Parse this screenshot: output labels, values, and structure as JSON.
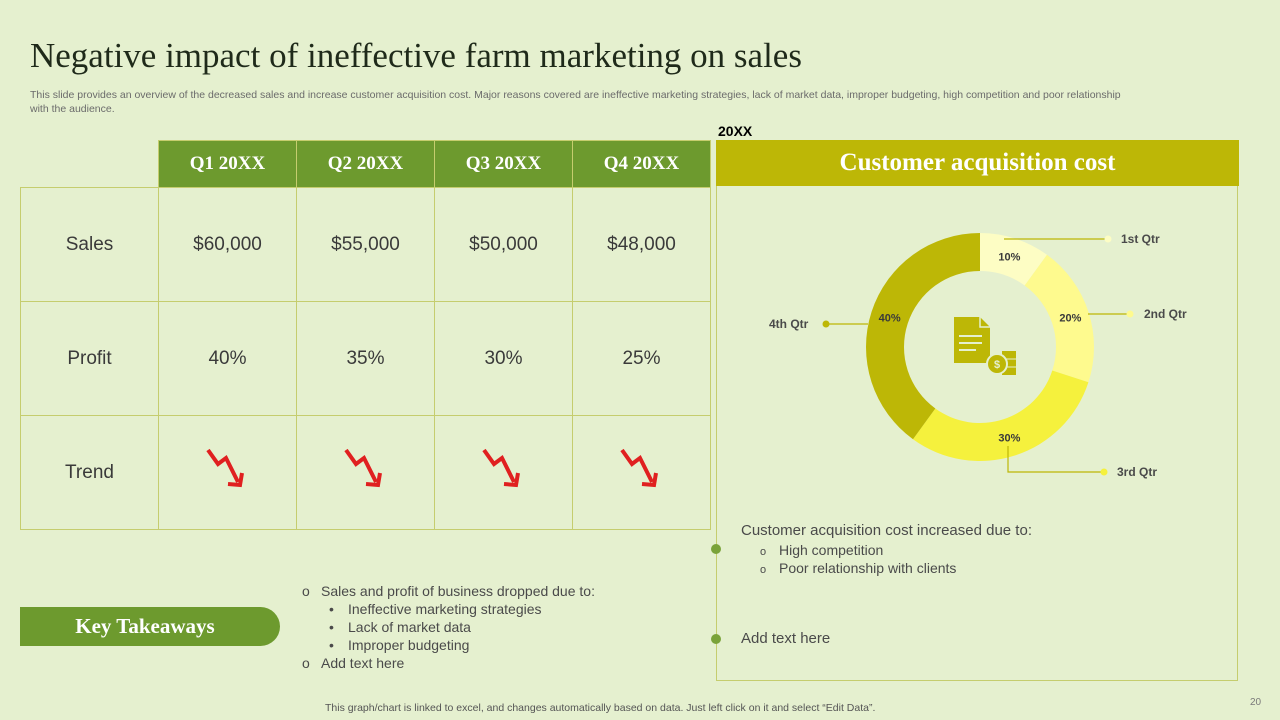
{
  "title": "Negative impact of ineffective farm marketing on sales",
  "subtitle": "This slide provides an overview of the decreased sales and increase customer acquisition cost. Major reasons covered are ineffective marketing strategies, lack of market data, improper budgeting, high competition and poor relationship with the audience.",
  "table": {
    "headers": [
      "Q1 20XX",
      "Q2 20XX",
      "Q3 20XX",
      "Q4 20XX"
    ],
    "rows": [
      {
        "label": "Sales",
        "values": [
          "$60,000",
          "$55,000",
          "$50,000",
          "$48,000"
        ]
      },
      {
        "label": "Profit",
        "values": [
          "40%",
          "35%",
          "30%",
          "25%"
        ]
      },
      {
        "label": "Trend",
        "icon": "down-trend-arrow-icon"
      }
    ]
  },
  "year_label": "20XX",
  "panel_title": "Customer acquisition cost",
  "chart_data": {
    "type": "pie",
    "variant": "donut",
    "title": "Customer acquisition cost",
    "labels": [
      "1st Qtr",
      "2nd Qtr",
      "3rd Qtr",
      "4th Qtr"
    ],
    "values": [
      10,
      20,
      30,
      40
    ],
    "value_labels": [
      "10%",
      "20%",
      "30%",
      "40%"
    ],
    "colors": [
      "#fdfdc4",
      "#fefa8e",
      "#f5f13d",
      "#bdb706"
    ],
    "center_icon": "document-dollar-icon"
  },
  "cac_note": {
    "title": "Customer acquisition cost increased due to:",
    "items": [
      "High competition",
      "Poor relationship with clients"
    ],
    "add_text": "Add text here"
  },
  "key_takeaways": {
    "label": "Key Takeaways",
    "heading": "Sales and profit of business dropped due to:",
    "items": [
      "Ineffective marketing strategies",
      "Lack of market data",
      "Improper budgeting"
    ],
    "add_text": "Add text here"
  },
  "footer": "This graph/chart is linked to excel,  and changes automatically based on data. Just left click on it and select “Edit Data”.",
  "page_number": "20",
  "colors": {
    "green": "#6d9a2e",
    "olive": "#bdb706",
    "background": "#e5f0cf",
    "arrow": "#e02020"
  }
}
